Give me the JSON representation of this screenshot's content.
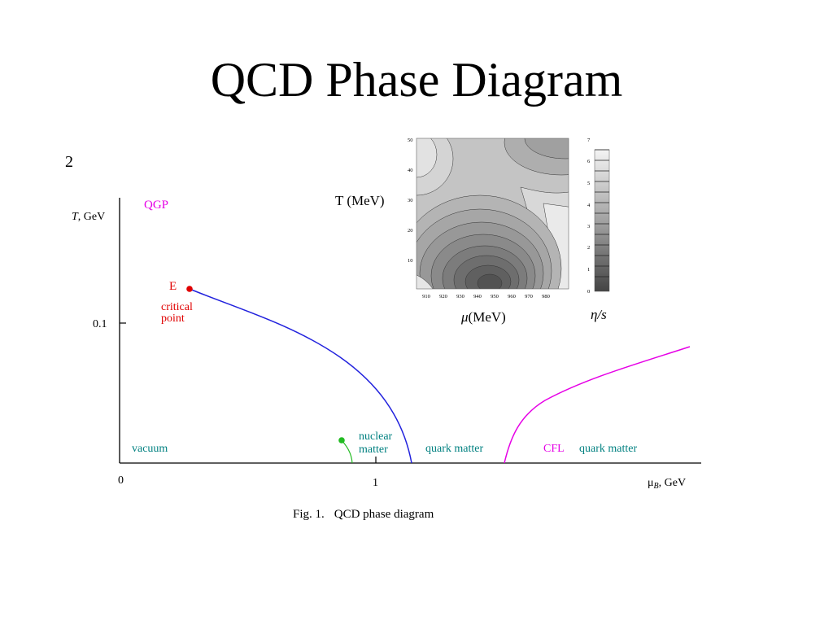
{
  "slide": {
    "title": "QCD Phase Diagram",
    "page_number": "2"
  },
  "main_diagram": {
    "y_axis_label_var": "T",
    "y_axis_label_unit": ", GeV",
    "y_tick_label": "0.1",
    "x_tick_zero": "0",
    "x_tick_one": "1",
    "x_axis_label_var": "μ",
    "x_axis_label_sub": "B",
    "x_axis_label_unit": ", GeV",
    "regions": {
      "qgp": "QGP",
      "vacuum": "vacuum",
      "nuclear_line1": "nuclear",
      "nuclear_line2": "matter",
      "quark_matter": "quark matter",
      "cfl": "CFL",
      "cfl_quark_matter": "quark matter"
    },
    "critical_point": {
      "letter": "E",
      "line1": "critical",
      "line2": "point"
    },
    "caption_fig": "Fig. 1.",
    "caption_text": "QCD phase diagram",
    "colors": {
      "qgp": "#e600e6",
      "critical": "#e00000",
      "teal": "#008080",
      "transition_line": "#2222dd",
      "cfl_line": "#e600e6",
      "nuclear_line": "#22bb22"
    }
  },
  "inset": {
    "y_label": "T (MeV)",
    "x_label_var": "μ",
    "x_label_unit": "(MeV)",
    "y_ticks": [
      "50",
      "40",
      "30",
      "20",
      "10"
    ],
    "x_ticks": [
      "910",
      "920",
      "930",
      "940",
      "950",
      "960",
      "970",
      "980"
    ],
    "colorbar_label": "η/s",
    "colorbar_ticks": [
      "7",
      "6",
      "5",
      "4",
      "3",
      "2",
      "1",
      "0"
    ]
  }
}
